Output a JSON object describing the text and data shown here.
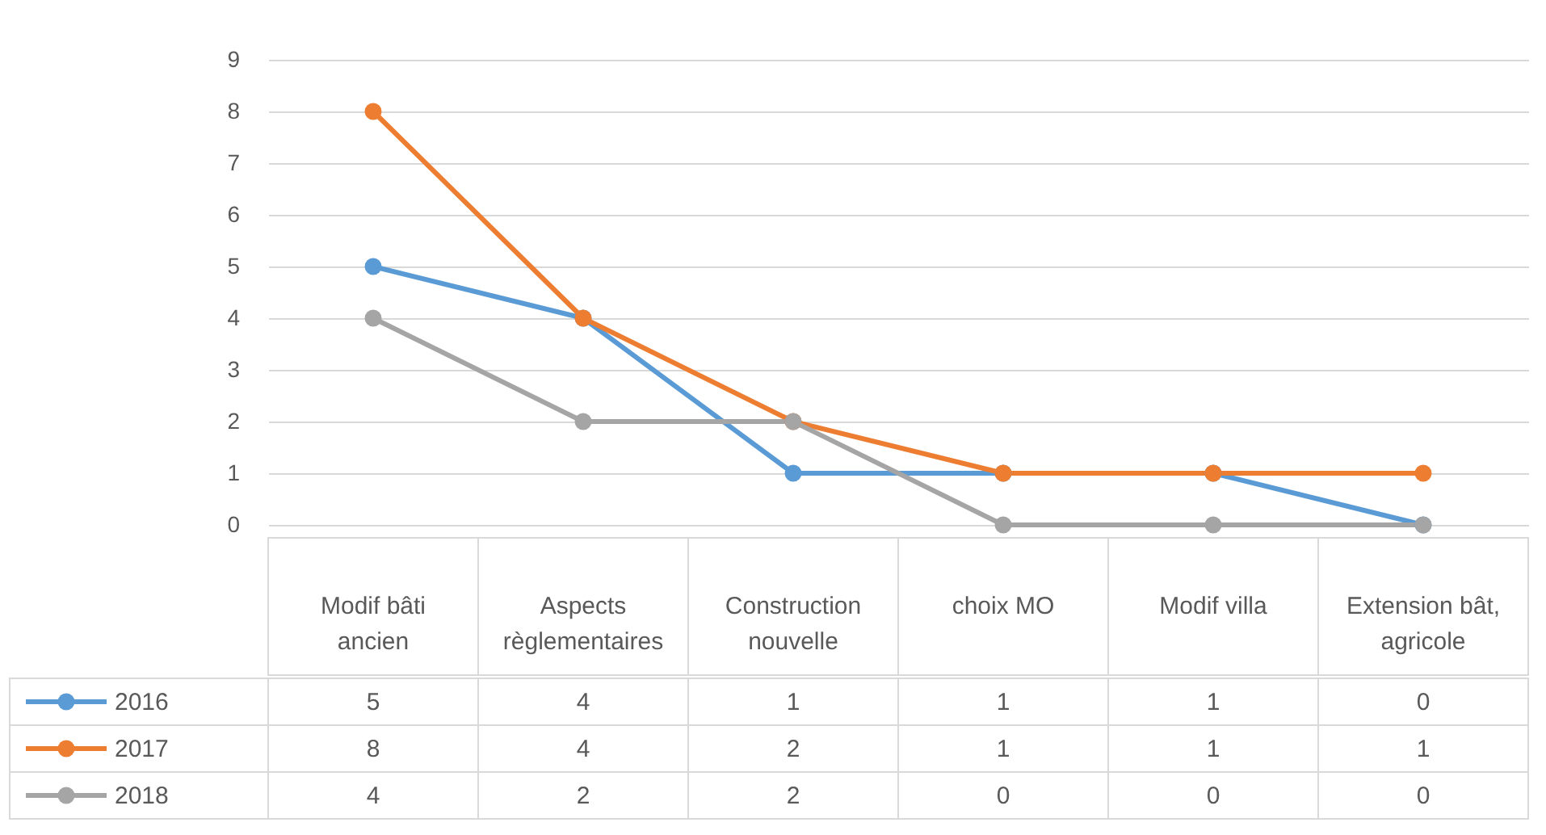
{
  "chart_data": {
    "type": "line",
    "categories": [
      "Modif bâti ancien",
      "Aspects règlementaires",
      "Construction nouvelle",
      "choix MO",
      "Modif villa",
      "Extension bât, agricole"
    ],
    "series": [
      {
        "name": "2016",
        "color": "#5b9bd5",
        "values": [
          5,
          4,
          1,
          1,
          1,
          0
        ]
      },
      {
        "name": "2017",
        "color": "#ed7d31",
        "values": [
          8,
          4,
          2,
          1,
          1,
          1
        ]
      },
      {
        "name": "2018",
        "color": "#a5a5a5",
        "values": [
          4,
          2,
          2,
          0,
          0,
          0
        ]
      }
    ],
    "ylim": [
      0,
      9
    ],
    "yticks": [
      0,
      1,
      2,
      3,
      4,
      5,
      6,
      7,
      8,
      9
    ],
    "grid": "y",
    "marker": "circle",
    "line_style": "solid",
    "data_labels": true,
    "legend": "bottom left"
  }
}
